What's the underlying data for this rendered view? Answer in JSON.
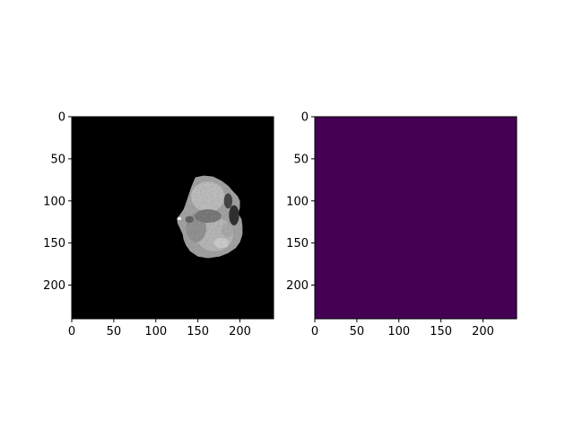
{
  "figure": {
    "background": "#ffffff"
  },
  "chart_data": [
    {
      "type": "heatmap",
      "title": "",
      "xlabel": "",
      "ylabel": "",
      "xlim": [
        0,
        240
      ],
      "ylim": [
        240,
        0
      ],
      "xticks": [
        0,
        50,
        100,
        150,
        200
      ],
      "yticks": [
        0,
        50,
        100,
        150,
        200
      ],
      "colormap": "gray",
      "background_value_color": "#000000",
      "content": "brain-slice",
      "content_extent": {
        "x": [
          125,
          203
        ],
        "y": [
          69,
          168
        ]
      },
      "grid": false
    },
    {
      "type": "heatmap",
      "title": "",
      "xlabel": "",
      "ylabel": "",
      "xlim": [
        0,
        240
      ],
      "ylim": [
        240,
        0
      ],
      "xticks": [
        0,
        50,
        100,
        150,
        200
      ],
      "yticks": [
        0,
        50,
        100,
        150,
        200
      ],
      "colormap": "viridis",
      "uniform_value": 0,
      "fill_color": "#440154",
      "grid": false
    }
  ]
}
